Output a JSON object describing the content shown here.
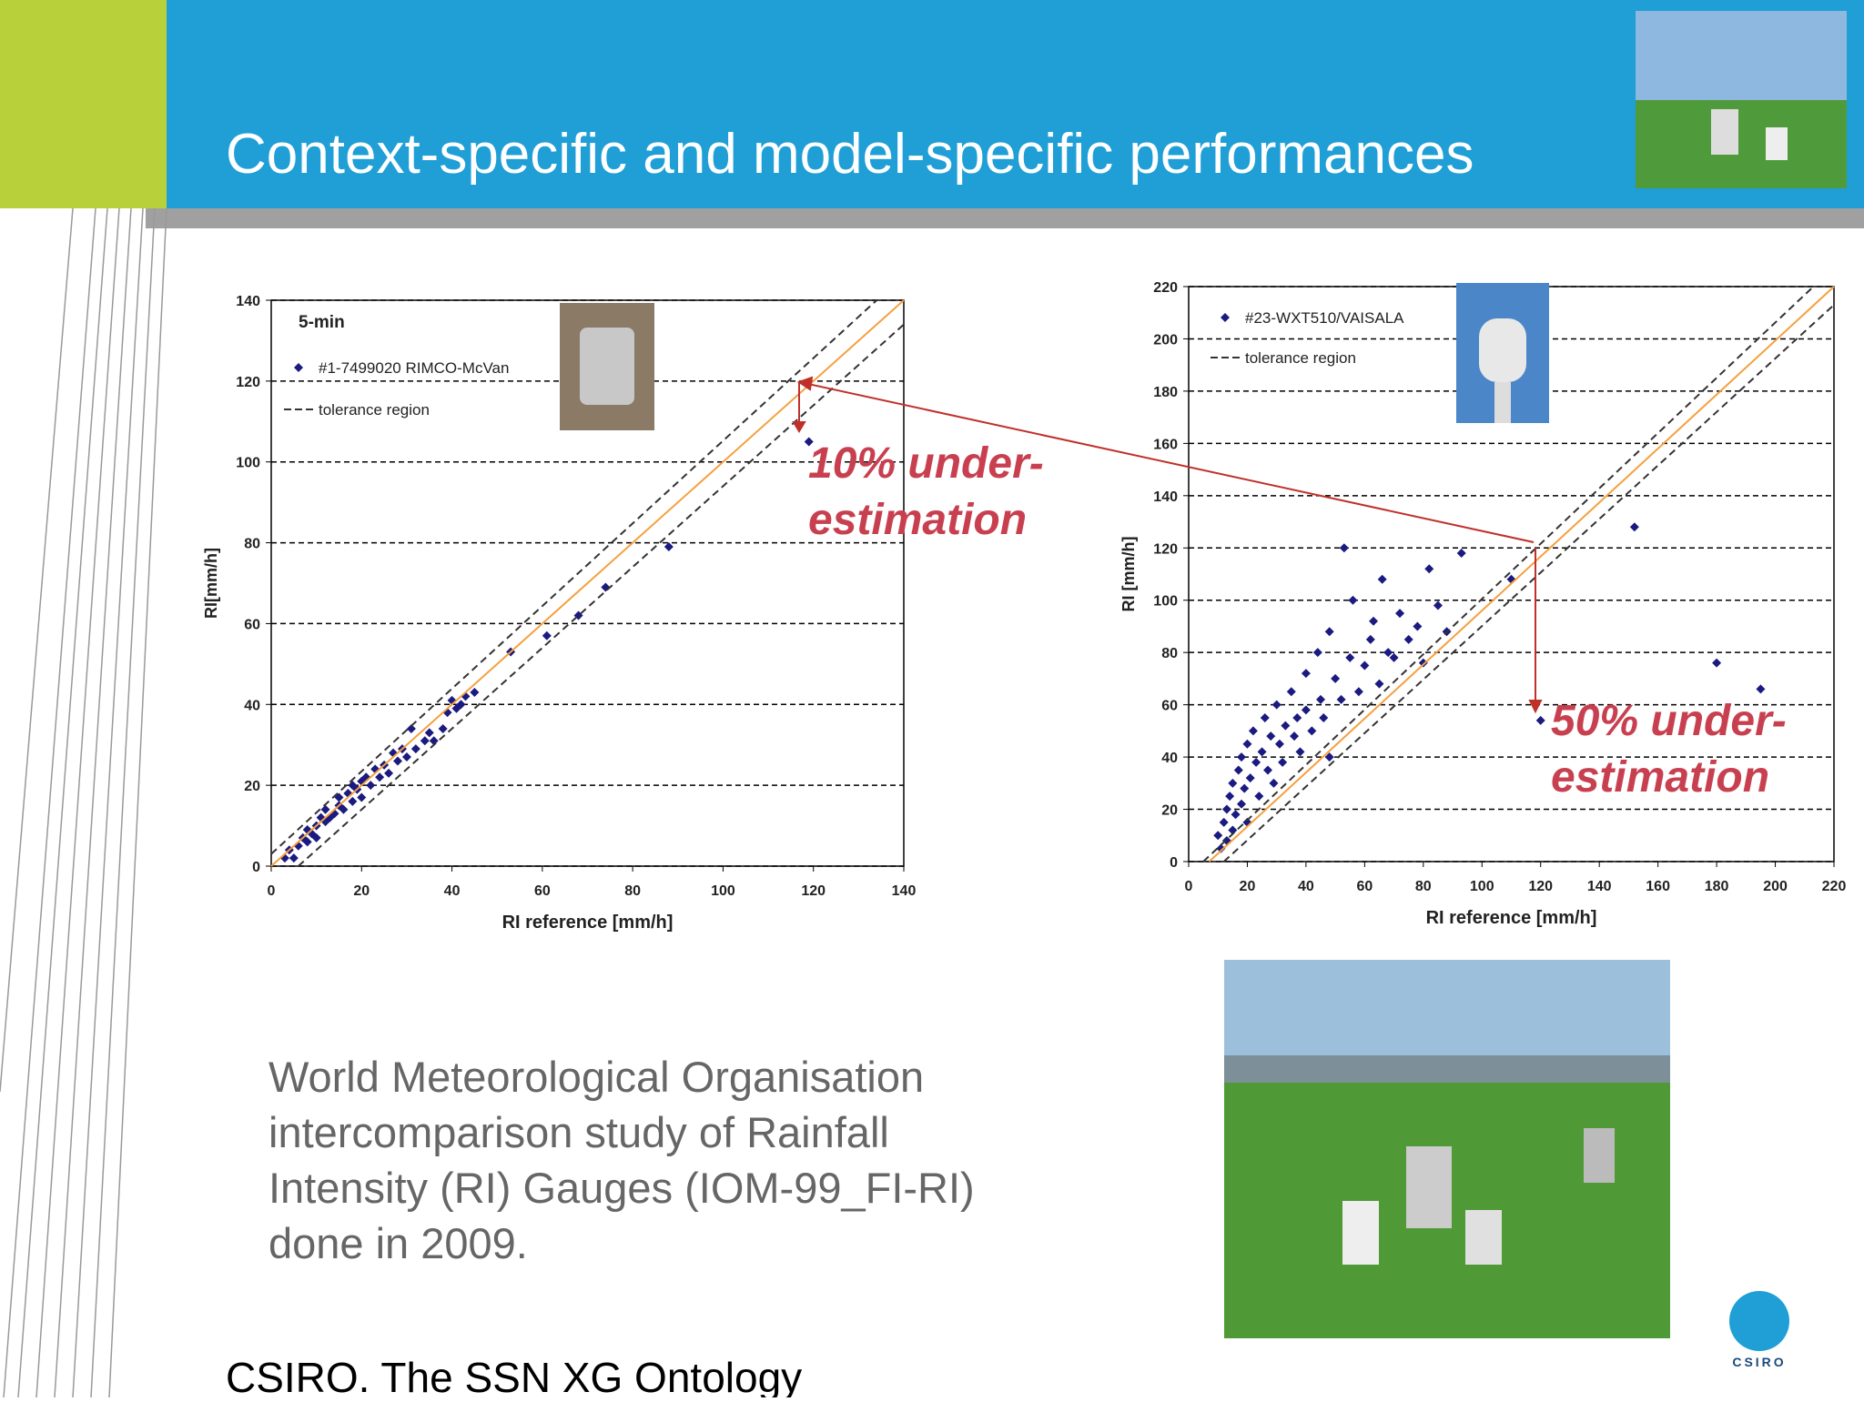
{
  "title": "Context-specific and model-specific performances",
  "body": [
    "World Meteorological Organisation",
    "intercomparison study of Rainfall",
    "Intensity (RI) Gauges (IOM-99_FI-RI)",
    "done in 2009."
  ],
  "footer": "CSIRO. The SSN XG Ontology",
  "logo": "CSIRO",
  "chart_data": [
    {
      "type": "scatter",
      "subtitle": "5-min",
      "x_label": "RI reference [mm/h]",
      "y_label": "RI[mm/h]",
      "xlim": [
        0,
        140
      ],
      "ylim": [
        0,
        140
      ],
      "xticks": [
        0,
        20,
        40,
        60,
        80,
        100,
        120,
        140
      ],
      "yticks": [
        0,
        20,
        40,
        60,
        80,
        100,
        120,
        140
      ],
      "grid": true,
      "annotation": [
        "10% under-",
        "estimation"
      ],
      "series": [
        {
          "name": "#1-7499020 RIMCO-McVan",
          "color": "#1a1a80",
          "x": [
            3,
            4,
            5,
            6,
            7,
            8,
            8,
            9,
            10,
            10,
            11,
            12,
            12,
            13,
            14,
            15,
            15,
            16,
            17,
            18,
            18,
            19,
            20,
            20,
            21,
            22,
            23,
            24,
            25,
            26,
            27,
            28,
            29,
            30,
            31,
            32,
            34,
            35,
            36,
            38,
            39,
            40,
            41,
            42,
            43,
            45,
            53,
            61,
            68,
            74,
            88,
            119
          ],
          "values": [
            2,
            4,
            2,
            5,
            7,
            6,
            9,
            8,
            10,
            7,
            12,
            11,
            14,
            12,
            13,
            15,
            17,
            14,
            18,
            16,
            20,
            19,
            21,
            17,
            22,
            20,
            24,
            22,
            25,
            23,
            28,
            26,
            29,
            27,
            34,
            29,
            31,
            33,
            31,
            34,
            38,
            41,
            39,
            40,
            42,
            43,
            53,
            57,
            62,
            69,
            79,
            105
          ]
        },
        {
          "name": "tolerance region",
          "color": "#333333",
          "dashed": true,
          "x": [
            0,
            134,
            null,
            6,
            140
          ],
          "values": [
            3,
            140,
            null,
            0,
            134
          ]
        },
        {
          "color": "#f5a040",
          "x": [
            0,
            140
          ],
          "values": [
            0,
            140
          ]
        }
      ]
    },
    {
      "type": "scatter",
      "x_label": "RI reference [mm/h]",
      "y_label": "RI [mm/h]",
      "xlim": [
        0,
        220
      ],
      "ylim": [
        0,
        220
      ],
      "xticks": [
        0,
        20,
        40,
        60,
        80,
        100,
        120,
        140,
        160,
        180,
        200,
        220
      ],
      "yticks": [
        0,
        20,
        40,
        60,
        80,
        100,
        120,
        140,
        160,
        180,
        200,
        220
      ],
      "grid": true,
      "annotation": [
        "50% under-",
        "estimation"
      ],
      "series": [
        {
          "name": "#23-WXT510/VAISALA",
          "color": "#1a1a80",
          "x": [
            10,
            11,
            12,
            13,
            13,
            14,
            15,
            15,
            16,
            17,
            18,
            18,
            19,
            20,
            20,
            21,
            22,
            23,
            24,
            25,
            26,
            27,
            28,
            29,
            30,
            31,
            32,
            33,
            35,
            36,
            37,
            38,
            40,
            40,
            42,
            44,
            45,
            46,
            48,
            48,
            50,
            52,
            53,
            55,
            56,
            58,
            60,
            62,
            63,
            65,
            66,
            68,
            70,
            72,
            75,
            78,
            80,
            82,
            85,
            88,
            93,
            110,
            120,
            152,
            180,
            195
          ],
          "values": [
            10,
            5,
            15,
            20,
            8,
            25,
            30,
            12,
            18,
            35,
            22,
            40,
            28,
            45,
            15,
            32,
            50,
            38,
            25,
            42,
            55,
            35,
            48,
            30,
            60,
            45,
            38,
            52,
            65,
            48,
            55,
            42,
            72,
            58,
            50,
            80,
            62,
            55,
            88,
            40,
            70,
            62,
            120,
            78,
            100,
            65,
            75,
            85,
            92,
            68,
            108,
            80,
            78,
            95,
            85,
            90,
            76,
            112,
            98,
            88,
            118,
            108,
            54,
            128,
            76,
            66
          ]
        },
        {
          "name": "tolerance region",
          "color": "#333333",
          "dashed": true,
          "x": [
            5,
            213,
            null,
            12,
            220
          ],
          "values": [
            0,
            220,
            null,
            0,
            213
          ]
        },
        {
          "color": "#f5a040",
          "x": [
            7,
            220
          ],
          "values": [
            0,
            220
          ]
        }
      ]
    }
  ]
}
